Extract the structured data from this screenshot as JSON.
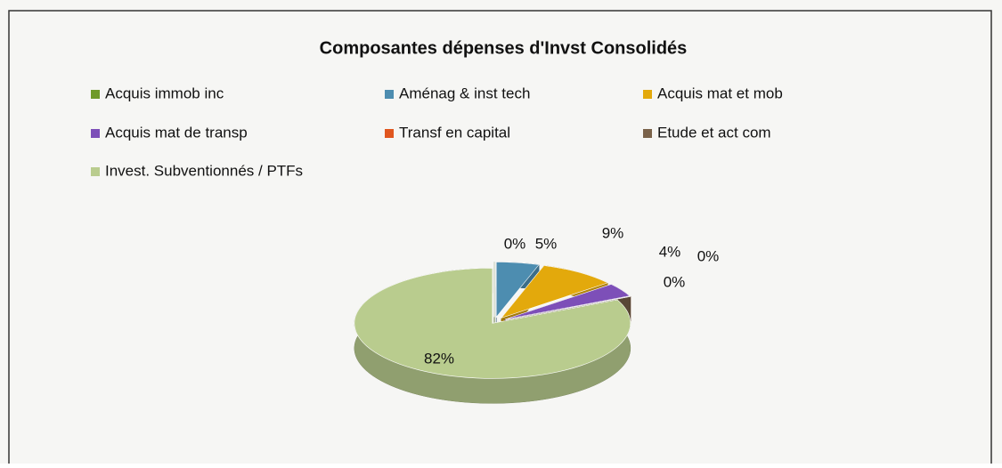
{
  "chart_data": {
    "type": "pie",
    "title": "Composantes dépenses d'Invst Consolidés",
    "categories": [
      "Acquis immob inc",
      "Aménag & inst tech",
      "Acquis  mat et mob",
      "Acquis mat de transp",
      "Transf en capital",
      "Etude et act com",
      "Invest. Subventionnés /  PTFs"
    ],
    "values": [
      0,
      5,
      9,
      4,
      0,
      0,
      82
    ],
    "value_labels": [
      "0%",
      "5%",
      "9%",
      "4%",
      "0%",
      "0%",
      "82%"
    ],
    "colors": [
      "#6f9a2a",
      "#4d8db0",
      "#e3a90c",
      "#7d4fb8",
      "#e0561f",
      "#7a624a",
      "#b9cc8e"
    ],
    "legend": "top"
  }
}
